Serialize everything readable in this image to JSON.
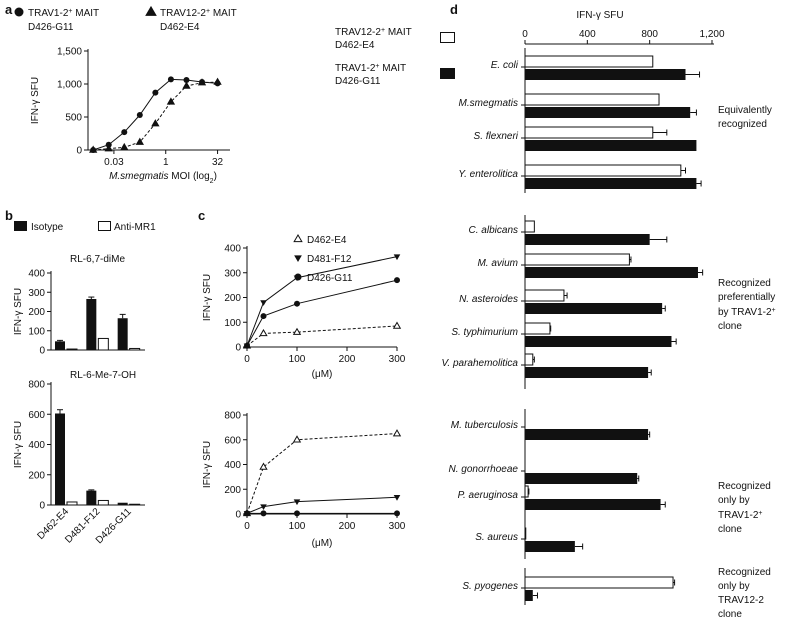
{
  "chart_data": [
    {
      "panel": "a",
      "type": "line",
      "legend": [
        {
          "marker": "circle",
          "line1": "TRAV1-2",
          "sup": "+",
          "line1b": " MAIT",
          "line2": "D426-G11"
        },
        {
          "marker": "triangle",
          "line1": "TRAV12-2",
          "sup": "+",
          "line1b": " MAIT",
          "line2": "D462-E4"
        }
      ],
      "ylabel": "IFN-γ SFU",
      "xlabel": "M.smegmatis MOI (log₂)",
      "xlabel_italic": "M.smegmatis",
      "xlabel_rest": " MOI (log",
      "xlabel_sub": "2",
      "xlabel_end": ")",
      "yticks": [
        "0",
        "500",
        "1,000",
        "1,500"
      ],
      "ylim": [
        0,
        1500
      ],
      "xtick_labels": [
        "0.03",
        "1",
        "32"
      ],
      "xtick_log2": [
        -5,
        0,
        5
      ],
      "xlim_log2": [
        -7.5,
        6.2
      ],
      "series": [
        {
          "marker": "circle",
          "dash": false,
          "x_log2": [
            -7,
            -5.5,
            -4,
            -2.5,
            -1,
            0.5,
            2,
            3.5,
            5
          ],
          "y": [
            0,
            80,
            270,
            530,
            870,
            1070,
            1060,
            1030,
            1010
          ]
        },
        {
          "marker": "triangle",
          "dash": true,
          "x_log2": [
            -7,
            -5.5,
            -4,
            -2.5,
            -1,
            0.5,
            2,
            3.5,
            5
          ],
          "y": [
            0,
            20,
            40,
            120,
            400,
            730,
            970,
            1020,
            1030
          ]
        }
      ]
    },
    {
      "panel": "b",
      "type": "bar",
      "legend": [
        "Isotype",
        "Anti-MR1"
      ],
      "ylabel": "IFN-γ SFU",
      "categories": [
        "D462-E4",
        "D481-F12",
        "D426-G11"
      ],
      "subplots": [
        {
          "title": "RL-6,7-diMe",
          "yticks": [
            "0",
            "100",
            "200",
            "300",
            "400"
          ],
          "ylim": [
            0,
            400
          ],
          "isotype": [
            45,
            265,
            165
          ],
          "isotype_err": [
            5,
            10,
            20
          ],
          "anti_mr1": [
            5,
            60,
            8
          ],
          "anti_mr1_err": [
            0,
            0,
            0
          ]
        },
        {
          "title": "RL-6-Me-7-OH",
          "yticks": [
            "0",
            "200",
            "400",
            "600",
            "800"
          ],
          "ylim": [
            0,
            800
          ],
          "isotype": [
            605,
            95,
            15
          ],
          "isotype_err": [
            25,
            5,
            0
          ],
          "anti_mr1": [
            20,
            30,
            5
          ],
          "anti_mr1_err": [
            0,
            0,
            0
          ]
        }
      ]
    },
    {
      "panel": "c",
      "type": "line",
      "legend": [
        {
          "marker": "open-triangle",
          "label": "D462-E4"
        },
        {
          "marker": "down-triangle",
          "label": "D481-F12"
        },
        {
          "marker": "circle",
          "label": "D426-G11"
        }
      ],
      "ylabel": "IFN-γ SFU",
      "xlabel": "(μM)",
      "xticks": [
        "0",
        "100",
        "200",
        "300"
      ],
      "xlim": [
        0,
        300
      ],
      "subplots": [
        {
          "yticks": [
            "0",
            "100",
            "200",
            "300",
            "400"
          ],
          "ylim": [
            0,
            400
          ],
          "series": [
            {
              "marker": "open-triangle",
              "dash": true,
              "x": [
                0,
                33,
                100,
                300
              ],
              "y": [
                5,
                55,
                60,
                85
              ]
            },
            {
              "marker": "down-triangle",
              "dash": false,
              "x": [
                0,
                33,
                100,
                300
              ],
              "y": [
                5,
                180,
                280,
                365
              ]
            },
            {
              "marker": "circle",
              "dash": false,
              "x": [
                0,
                33,
                100,
                300
              ],
              "y": [
                5,
                125,
                175,
                270
              ]
            }
          ]
        },
        {
          "yticks": [
            "0",
            "200",
            "400",
            "600",
            "800"
          ],
          "ylim": [
            0,
            800
          ],
          "series": [
            {
              "marker": "open-triangle",
              "dash": true,
              "x": [
                0,
                33,
                100,
                300
              ],
              "y": [
                5,
                380,
                600,
                650
              ]
            },
            {
              "marker": "down-triangle",
              "dash": false,
              "x": [
                0,
                33,
                100,
                300
              ],
              "y": [
                5,
                60,
                100,
                135
              ]
            },
            {
              "marker": "circle",
              "dash": false,
              "x": [
                0,
                33,
                100,
                300
              ],
              "y": [
                5,
                5,
                5,
                5
              ]
            }
          ]
        }
      ]
    },
    {
      "panel": "d",
      "type": "bar",
      "orientation": "horizontal",
      "title": "IFN-γ SFU",
      "xticks": [
        "0",
        "400",
        "800",
        "1,200"
      ],
      "xlim": [
        0,
        1200
      ],
      "legend": [
        {
          "fill": "open",
          "line1": "TRAV12-2",
          "sup": "+",
          "line1b": " MAIT",
          "line2": "D462-E4"
        },
        {
          "fill": "filled",
          "line1": "TRAV1-2",
          "sup": "+",
          "line1b": " MAIT",
          "line2": "D426-G11"
        }
      ],
      "rows": [
        {
          "label": "E. coli",
          "open": 820,
          "open_err": 0,
          "filled": 1030,
          "filled_err": 90
        },
        {
          "label": "M.smegmatis",
          "open": 860,
          "open_err": 0,
          "filled": 1060,
          "filled_err": 40
        },
        {
          "label": "S. flexneri",
          "open": 820,
          "open_err": 90,
          "filled": 1100,
          "filled_err": 0
        },
        {
          "label": "Y. enterolitica",
          "open": 1000,
          "open_err": 30,
          "filled": 1100,
          "filled_err": 30
        },
        {
          "label": "C. albicans",
          "open": 60,
          "open_err": 0,
          "filled": 800,
          "filled_err": 110
        },
        {
          "label": "M. avium",
          "open": 670,
          "open_err": 10,
          "filled": 1110,
          "filled_err": 30
        },
        {
          "label": "N. asteroides",
          "open": 250,
          "open_err": 20,
          "filled": 880,
          "filled_err": 20
        },
        {
          "label": "S. typhimurium",
          "open": 160,
          "open_err": 5,
          "filled": 940,
          "filled_err": 30
        },
        {
          "label": "V. parahemolitica",
          "open": 50,
          "open_err": 10,
          "filled": 790,
          "filled_err": 20
        },
        {
          "label": "M. tuberculosis",
          "open": 0,
          "open_err": 0,
          "filled": 790,
          "filled_err": 10
        },
        {
          "label": "N. gonorrhoeae",
          "open": 0,
          "open_err": 0,
          "filled": 720,
          "filled_err": 10
        },
        {
          "label": "P. aeruginosa",
          "open": 20,
          "open_err": 5,
          "filled": 870,
          "filled_err": 30
        },
        {
          "label": "S. aureus",
          "open": 5,
          "open_err": 0,
          "filled": 320,
          "filled_err": 50
        },
        {
          "label": "S. pyogenes",
          "open": 950,
          "open_err": 10,
          "filled": 50,
          "filled_err": 30
        }
      ],
      "groups": [
        {
          "lines": [
            "Equivalently",
            "recognized"
          ]
        },
        {
          "lines": [
            "Recognized",
            "preferentially",
            "by TRAV1-2",
            "clone"
          ],
          "sup_line": 2
        },
        {
          "lines": [
            "Recognized",
            "only by",
            "TRAV1-2",
            "clone"
          ],
          "sup_line": 2
        },
        {
          "lines": [
            "Recognized",
            "only by",
            "TRAV12-2",
            "clone"
          ]
        }
      ]
    }
  ]
}
